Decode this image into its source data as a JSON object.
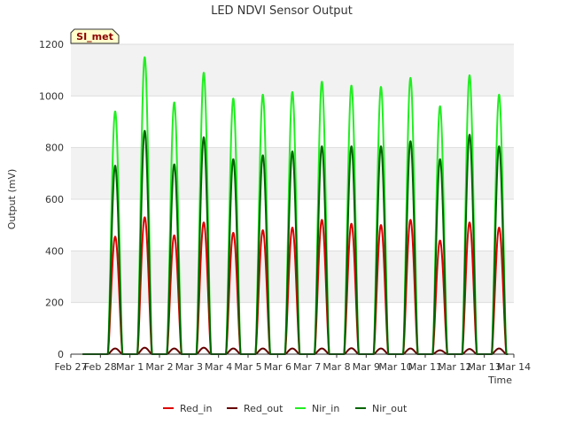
{
  "chart_data": {
    "type": "line",
    "title": "LED NDVI Sensor Output",
    "xlabel": "Time",
    "ylabel": "Output (mV)",
    "badge": "SI_met",
    "ylim": [
      0,
      1200
    ],
    "yticks": [
      0,
      200,
      400,
      600,
      800,
      1000,
      1200
    ],
    "xlim": [
      "2023-02-27",
      "2023-03-14"
    ],
    "xticks": [
      "Feb 27",
      "Feb 28",
      "Mar 1",
      "Mar 2",
      "Mar 3",
      "Mar 4",
      "Mar 5",
      "Mar 6",
      "Mar 7",
      "Mar 8",
      "Mar 9",
      "Mar 10",
      "Mar 11",
      "Mar 12",
      "Mar 13",
      "Mar 14"
    ],
    "grid": true,
    "legend": "bottom",
    "days": [
      "Feb 28",
      "Mar 1",
      "Mar 2",
      "Mar 3",
      "Mar 4",
      "Mar 5",
      "Mar 6",
      "Mar 7",
      "Mar 8",
      "Mar 9",
      "Mar 10",
      "Mar 11",
      "Mar 12",
      "Mar 13"
    ],
    "series": [
      {
        "name": "Red_in",
        "color": "#dd0000",
        "daily_peak": [
          455,
          530,
          460,
          510,
          470,
          480,
          490,
          520,
          505,
          500,
          520,
          440,
          510,
          490
        ]
      },
      {
        "name": "Red_out",
        "color": "#660000",
        "daily_peak": [
          22,
          25,
          22,
          25,
          22,
          22,
          22,
          22,
          23,
          22,
          22,
          15,
          20,
          22
        ]
      },
      {
        "name": "Nir_in",
        "color": "#22ee22",
        "daily_peak": [
          940,
          1150,
          975,
          1090,
          990,
          1005,
          1015,
          1055,
          1040,
          1035,
          1070,
          960,
          1080,
          1005
        ]
      },
      {
        "name": "Nir_out",
        "color": "#006400",
        "daily_peak": [
          730,
          865,
          735,
          840,
          755,
          770,
          785,
          805,
          805,
          805,
          825,
          755,
          850,
          805
        ]
      }
    ]
  }
}
